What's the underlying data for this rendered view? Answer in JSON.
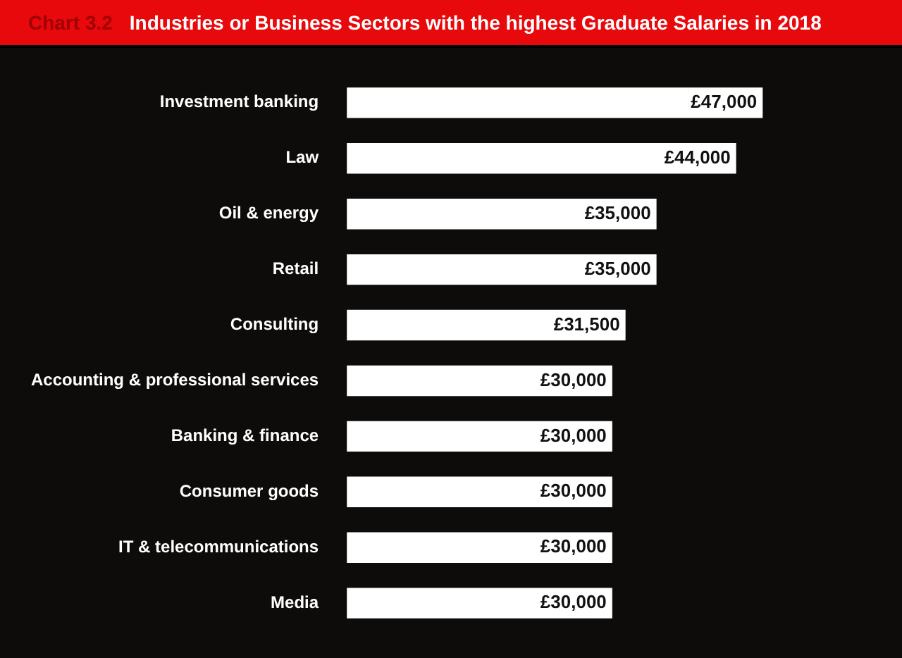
{
  "chart_data": {
    "type": "bar",
    "orientation": "horizontal",
    "title": "Industries or Business Sectors with the highest Graduate Salaries in 2018",
    "annotations": [
      "Chart 3.2"
    ],
    "categories": [
      "Investment banking",
      "Law",
      "Oil & energy",
      "Retail",
      "Consulting",
      "Accounting & professional services",
      "Banking & finance",
      "Consumer goods",
      "IT & telecommunications",
      "Media"
    ],
    "values": [
      47000,
      44000,
      35000,
      35000,
      31500,
      30000,
      30000,
      30000,
      30000,
      30000
    ],
    "value_labels": [
      "£47,000",
      "£44,000",
      "£35,000",
      "£35,000",
      "£31,500",
      "£30,000",
      "£30,000",
      "£30,000",
      "£30,000",
      "£30,000"
    ],
    "color": "#ffffff"
  }
}
